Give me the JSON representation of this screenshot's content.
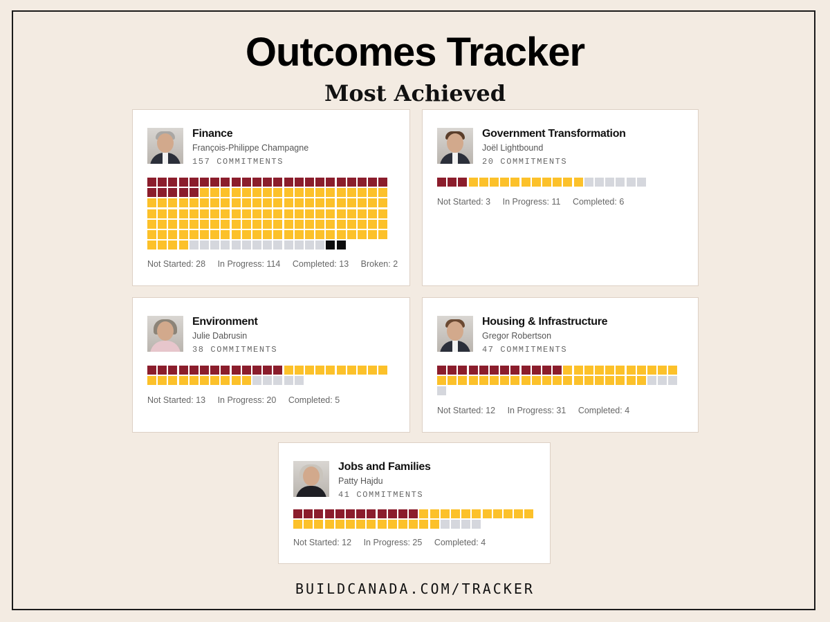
{
  "header": {
    "title": "Outcomes Tracker",
    "subtitle": "Most Achieved"
  },
  "colors": {
    "not_started": "#8b1d2c",
    "in_progress": "#fcc12a",
    "completed": "#d5d7dd",
    "broken": "#0d0d0d"
  },
  "cards": [
    {
      "department": "Finance",
      "minister": "François-Philippe Champagne",
      "commitments": "157 COMMITMENTS",
      "not_started": 28,
      "in_progress": 114,
      "completed": 13,
      "broken": 2,
      "columns": 23,
      "legend": [
        "Not Started: 28",
        "In Progress: 114",
        "Completed: 13",
        "Broken: 2"
      ]
    },
    {
      "department": "Government Transformation",
      "minister": "Joël Lightbound",
      "commitments": "20 COMMITMENTS",
      "not_started": 3,
      "in_progress": 11,
      "completed": 6,
      "broken": 0,
      "columns": 23,
      "legend": [
        "Not Started: 3",
        "In Progress: 11",
        "Completed: 6"
      ]
    },
    {
      "department": "Environment",
      "minister": "Julie Dabrusin",
      "commitments": "38 COMMITMENTS",
      "not_started": 13,
      "in_progress": 20,
      "completed": 5,
      "broken": 0,
      "columns": 23,
      "legend": [
        "Not Started: 13",
        "In Progress: 20",
        "Completed: 5"
      ]
    },
    {
      "department": "Housing & Infrastructure",
      "minister": "Gregor Robertson",
      "commitments": "47 COMMITMENTS",
      "not_started": 12,
      "in_progress": 31,
      "completed": 4,
      "broken": 0,
      "columns": 23,
      "legend": [
        "Not Started: 12",
        "In Progress: 31",
        "Completed: 4"
      ]
    },
    {
      "department": "Jobs and Families",
      "minister": "Patty Hajdu",
      "commitments": "41 COMMITMENTS",
      "not_started": 12,
      "in_progress": 25,
      "completed": 4,
      "broken": 0,
      "columns": 23,
      "legend": [
        "Not Started: 12",
        "In Progress: 25",
        "Completed: 4"
      ]
    }
  ],
  "footer": {
    "url": "BUILDCANADA.COM/TRACKER"
  }
}
